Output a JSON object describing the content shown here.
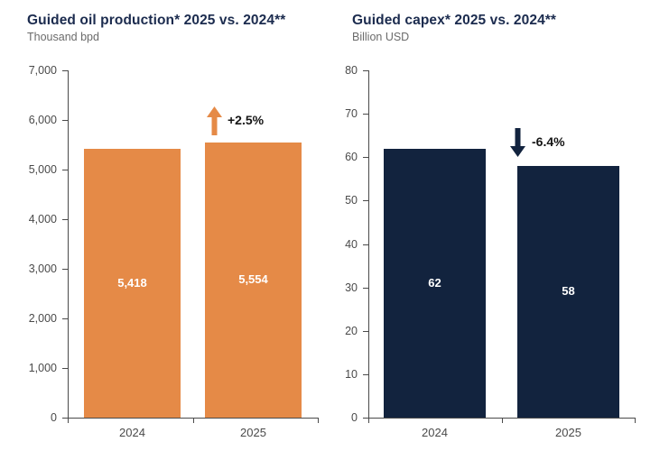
{
  "page": {
    "background_color": "#ffffff"
  },
  "chart_data": [
    {
      "type": "bar",
      "title": "Guided oil production* 2025 vs. 2024**",
      "unit_label": "Thousand bpd",
      "categories": [
        "2024",
        "2025"
      ],
      "values": [
        5418,
        5554
      ],
      "value_labels": [
        "5,418",
        "5,554"
      ],
      "ylim": [
        0,
        7000
      ],
      "ytick_step": 1000,
      "ytick_labels": [
        "0",
        "1,000",
        "2,000",
        "3,000",
        "4,000",
        "5,000",
        "6,000",
        "7,000"
      ],
      "bar_color": "#e58a47",
      "grid": false,
      "legend": "none",
      "annotation": {
        "text": "+2.5%",
        "direction": "up",
        "arrow_color": "#e58a47",
        "target_category": "2025"
      }
    },
    {
      "type": "bar",
      "title": "Guided capex* 2025 vs. 2024**",
      "unit_label": "Billion USD",
      "categories": [
        "2024",
        "2025"
      ],
      "values": [
        62,
        58
      ],
      "value_labels": [
        "62",
        "58"
      ],
      "ylim": [
        0,
        80
      ],
      "ytick_step": 10,
      "ytick_labels": [
        "0",
        "10",
        "20",
        "30",
        "40",
        "50",
        "60",
        "70",
        "80"
      ],
      "bar_color": "#12233e",
      "grid": false,
      "legend": "none",
      "annotation": {
        "text": "-6.4%",
        "direction": "down",
        "arrow_color": "#12233e",
        "target_category": "2025"
      }
    }
  ]
}
